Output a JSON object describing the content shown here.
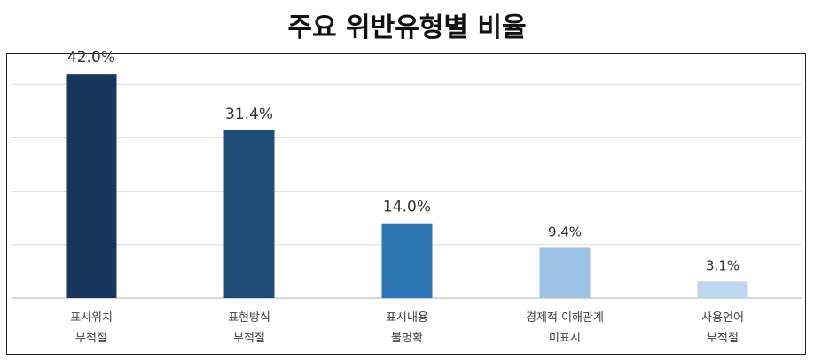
{
  "chart_data": {
    "type": "bar",
    "title": "주요 위반유형별 비율",
    "categories": [
      [
        "표시위치",
        "부적절"
      ],
      [
        "표현방식",
        "부적절"
      ],
      [
        "표시내용",
        "불명확"
      ],
      [
        "경제적 이해관계",
        "미표시"
      ],
      [
        "사용언어",
        "부적절"
      ]
    ],
    "values": [
      42.0,
      31.4,
      14.0,
      9.4,
      3.1
    ],
    "value_labels": [
      "42.0%",
      "31.4%",
      "14.0%",
      "9.4%",
      "3.1%"
    ],
    "bar_colors": [
      "#17375e",
      "#1f4e79",
      "#2e75b6",
      "#9dc3e6",
      "#bdd7ee"
    ],
    "xlabel": "",
    "ylabel": "",
    "ylim": [
      0,
      40
    ],
    "grid": true,
    "legend": "none"
  }
}
